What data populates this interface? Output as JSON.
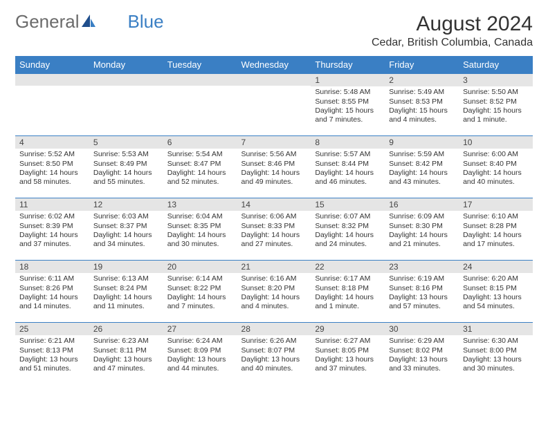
{
  "colors": {
    "header_bg": "#3a7fc4",
    "header_text": "#ffffff",
    "daynum_bg": "#e5e5e5",
    "border": "#3a7fc4",
    "body_text": "#333333",
    "logo_gray": "#6b6b6b",
    "logo_blue": "#3a7fc4",
    "page_bg": "#ffffff"
  },
  "typography": {
    "month_title_size": 30,
    "location_size": 16,
    "day_header_size": 13,
    "day_num_size": 12,
    "cell_text_size": 10.5,
    "logo_size": 26
  },
  "logo": {
    "part1": "General",
    "part2": "Blue"
  },
  "title": "August 2024",
  "location": "Cedar, British Columbia, Canada",
  "day_headers": [
    "Sunday",
    "Monday",
    "Tuesday",
    "Wednesday",
    "Thursday",
    "Friday",
    "Saturday"
  ],
  "labels": {
    "sunrise": "Sunrise:",
    "sunset": "Sunset:",
    "daylight": "Daylight:"
  },
  "weeks": [
    [
      null,
      null,
      null,
      null,
      {
        "n": "1",
        "sunrise": "5:48 AM",
        "sunset": "8:55 PM",
        "daylight": "15 hours and 7 minutes."
      },
      {
        "n": "2",
        "sunrise": "5:49 AM",
        "sunset": "8:53 PM",
        "daylight": "15 hours and 4 minutes."
      },
      {
        "n": "3",
        "sunrise": "5:50 AM",
        "sunset": "8:52 PM",
        "daylight": "15 hours and 1 minute."
      }
    ],
    [
      {
        "n": "4",
        "sunrise": "5:52 AM",
        "sunset": "8:50 PM",
        "daylight": "14 hours and 58 minutes."
      },
      {
        "n": "5",
        "sunrise": "5:53 AM",
        "sunset": "8:49 PM",
        "daylight": "14 hours and 55 minutes."
      },
      {
        "n": "6",
        "sunrise": "5:54 AM",
        "sunset": "8:47 PM",
        "daylight": "14 hours and 52 minutes."
      },
      {
        "n": "7",
        "sunrise": "5:56 AM",
        "sunset": "8:46 PM",
        "daylight": "14 hours and 49 minutes."
      },
      {
        "n": "8",
        "sunrise": "5:57 AM",
        "sunset": "8:44 PM",
        "daylight": "14 hours and 46 minutes."
      },
      {
        "n": "9",
        "sunrise": "5:59 AM",
        "sunset": "8:42 PM",
        "daylight": "14 hours and 43 minutes."
      },
      {
        "n": "10",
        "sunrise": "6:00 AM",
        "sunset": "8:40 PM",
        "daylight": "14 hours and 40 minutes."
      }
    ],
    [
      {
        "n": "11",
        "sunrise": "6:02 AM",
        "sunset": "8:39 PM",
        "daylight": "14 hours and 37 minutes."
      },
      {
        "n": "12",
        "sunrise": "6:03 AM",
        "sunset": "8:37 PM",
        "daylight": "14 hours and 34 minutes."
      },
      {
        "n": "13",
        "sunrise": "6:04 AM",
        "sunset": "8:35 PM",
        "daylight": "14 hours and 30 minutes."
      },
      {
        "n": "14",
        "sunrise": "6:06 AM",
        "sunset": "8:33 PM",
        "daylight": "14 hours and 27 minutes."
      },
      {
        "n": "15",
        "sunrise": "6:07 AM",
        "sunset": "8:32 PM",
        "daylight": "14 hours and 24 minutes."
      },
      {
        "n": "16",
        "sunrise": "6:09 AM",
        "sunset": "8:30 PM",
        "daylight": "14 hours and 21 minutes."
      },
      {
        "n": "17",
        "sunrise": "6:10 AM",
        "sunset": "8:28 PM",
        "daylight": "14 hours and 17 minutes."
      }
    ],
    [
      {
        "n": "18",
        "sunrise": "6:11 AM",
        "sunset": "8:26 PM",
        "daylight": "14 hours and 14 minutes."
      },
      {
        "n": "19",
        "sunrise": "6:13 AM",
        "sunset": "8:24 PM",
        "daylight": "14 hours and 11 minutes."
      },
      {
        "n": "20",
        "sunrise": "6:14 AM",
        "sunset": "8:22 PM",
        "daylight": "14 hours and 7 minutes."
      },
      {
        "n": "21",
        "sunrise": "6:16 AM",
        "sunset": "8:20 PM",
        "daylight": "14 hours and 4 minutes."
      },
      {
        "n": "22",
        "sunrise": "6:17 AM",
        "sunset": "8:18 PM",
        "daylight": "14 hours and 1 minute."
      },
      {
        "n": "23",
        "sunrise": "6:19 AM",
        "sunset": "8:16 PM",
        "daylight": "13 hours and 57 minutes."
      },
      {
        "n": "24",
        "sunrise": "6:20 AM",
        "sunset": "8:15 PM",
        "daylight": "13 hours and 54 minutes."
      }
    ],
    [
      {
        "n": "25",
        "sunrise": "6:21 AM",
        "sunset": "8:13 PM",
        "daylight": "13 hours and 51 minutes."
      },
      {
        "n": "26",
        "sunrise": "6:23 AM",
        "sunset": "8:11 PM",
        "daylight": "13 hours and 47 minutes."
      },
      {
        "n": "27",
        "sunrise": "6:24 AM",
        "sunset": "8:09 PM",
        "daylight": "13 hours and 44 minutes."
      },
      {
        "n": "28",
        "sunrise": "6:26 AM",
        "sunset": "8:07 PM",
        "daylight": "13 hours and 40 minutes."
      },
      {
        "n": "29",
        "sunrise": "6:27 AM",
        "sunset": "8:05 PM",
        "daylight": "13 hours and 37 minutes."
      },
      {
        "n": "30",
        "sunrise": "6:29 AM",
        "sunset": "8:02 PM",
        "daylight": "13 hours and 33 minutes."
      },
      {
        "n": "31",
        "sunrise": "6:30 AM",
        "sunset": "8:00 PM",
        "daylight": "13 hours and 30 minutes."
      }
    ]
  ]
}
